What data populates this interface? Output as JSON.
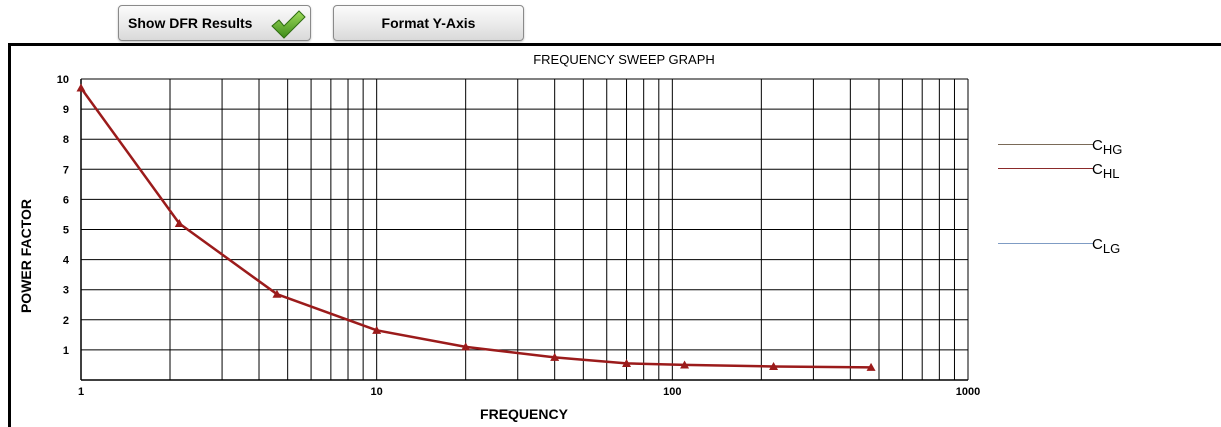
{
  "toolbar": {
    "show_dfr_label": "Show DFR Results",
    "format_y_label": "Format Y-Axis"
  },
  "legend": [
    {
      "prefix": "C",
      "sub": "HG",
      "color": "#7a6a58"
    },
    {
      "prefix": "C",
      "sub": "HL",
      "color": "#8b2a2a"
    },
    {
      "prefix": "C",
      "sub": "LG",
      "color": "#7f9cc4"
    }
  ],
  "chart_data": {
    "type": "line",
    "title": "FREQUENCY SWEEP GRAPH",
    "xlabel": "FREQUENCY",
    "ylabel": "POWER FACTOR",
    "x_scale": "log",
    "xlim": [
      1,
      1000
    ],
    "ylim": [
      0,
      10
    ],
    "x_ticks": [
      1,
      10,
      100,
      1000
    ],
    "x_tick_labels": [
      "1",
      "10",
      "100",
      "1000"
    ],
    "y_ticks": [
      1,
      2,
      3,
      4,
      5,
      6,
      7,
      8,
      9,
      10
    ],
    "y_tick_labels": [
      "1",
      "2",
      "3",
      "4",
      "5",
      "6",
      "7",
      "8",
      "9",
      "10"
    ],
    "grid": true,
    "series": [
      {
        "color": "#9b1b1b",
        "marker": "triangle",
        "points": [
          {
            "x": 1,
            "y": 9.7
          },
          {
            "x": 2.15,
            "y": 5.2
          },
          {
            "x": 4.6,
            "y": 2.85
          },
          {
            "x": 10,
            "y": 1.65
          },
          {
            "x": 20,
            "y": 1.1
          },
          {
            "x": 40,
            "y": 0.75
          },
          {
            "x": 70,
            "y": 0.55
          },
          {
            "x": 110,
            "y": 0.5
          },
          {
            "x": 220,
            "y": 0.45
          },
          {
            "x": 470,
            "y": 0.42
          }
        ]
      }
    ]
  }
}
